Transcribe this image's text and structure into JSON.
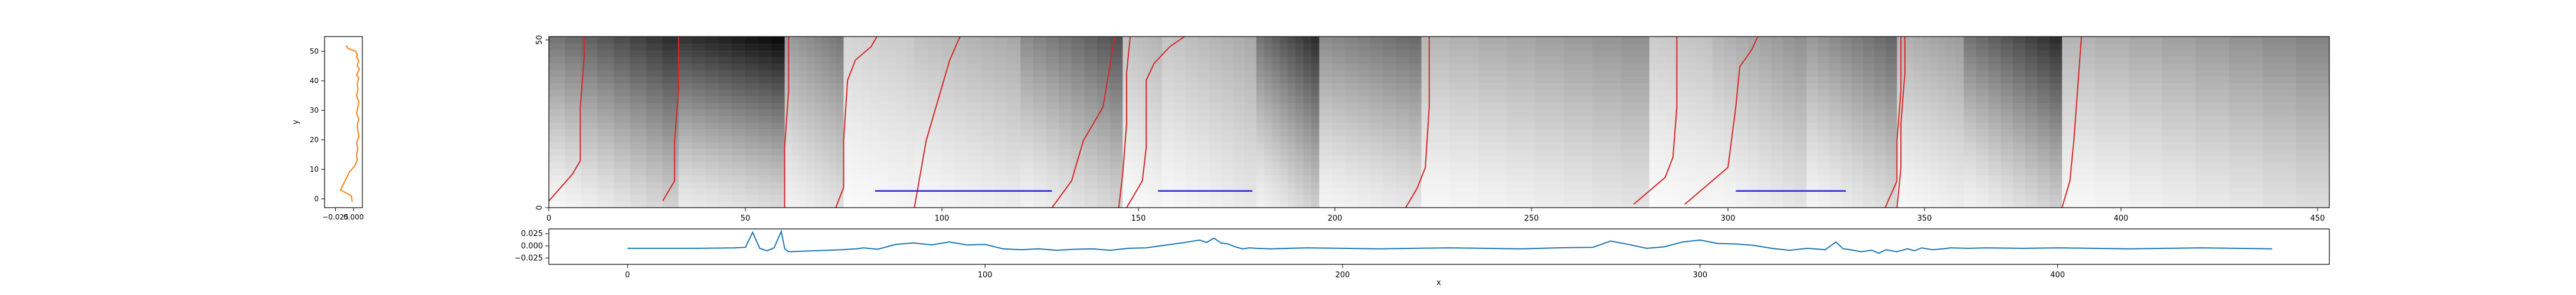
{
  "colors": {
    "path": "#d62728",
    "segment": "#1f1fd0",
    "bottom_series": "#1f77b4",
    "left_series": "#ff7f0e",
    "axes": "#000000"
  },
  "chart_data": [
    {
      "id": "left",
      "type": "line",
      "xlabel": "",
      "ylabel": "y",
      "xlim": [
        -0.04,
        0.012
      ],
      "ylim": [
        -3,
        55
      ],
      "xticks": [
        -0.025,
        0.0
      ],
      "xtick_labels": [
        "−0.025",
        "0.000"
      ],
      "yticks": [
        0,
        10,
        20,
        30,
        40,
        50
      ],
      "ytick_labels": [
        "0",
        "10",
        "20",
        "30",
        "40",
        "50"
      ],
      "series": [
        {
          "x": [
            -0.002,
            -0.003,
            -0.018,
            -0.012,
            -0.006,
            0.001,
            0.005,
            0.004,
            0.006,
            0.004,
            0.007,
            0.006,
            0.005,
            0.007,
            0.004,
            0.006,
            0.007,
            0.004,
            0.006,
            0.005,
            0.007,
            0.004,
            0.006,
            0.008,
            0.005,
            0.006,
            0.007,
            0.004,
            0.005,
            0.003,
            -0.008,
            -0.01
          ],
          "y": [
            -1,
            1,
            3,
            6,
            9,
            11,
            13,
            15,
            17,
            19,
            21,
            23,
            25,
            27,
            29,
            31,
            33,
            35,
            37,
            39,
            41,
            42,
            43,
            44,
            45,
            46,
            47,
            48,
            49,
            50,
            51,
            52
          ]
        }
      ]
    },
    {
      "id": "main",
      "type": "heatmap",
      "xlabel": "",
      "ylabel": "",
      "xlim": [
        0,
        453
      ],
      "ylim": [
        0,
        51
      ],
      "xticks": [
        0,
        50,
        100,
        150,
        200,
        250,
        300,
        350,
        400,
        450
      ],
      "xtick_labels": [
        "0",
        "50",
        "100",
        "150",
        "200",
        "250",
        "300",
        "350",
        "400",
        "450"
      ],
      "yticks": [
        0,
        50
      ],
      "ytick_labels": [
        "0",
        "50"
      ],
      "blocks": [
        {
          "x0": 0,
          "x1": 33,
          "hi": 0.85,
          "lo": 0.03,
          "ang": 0.6
        },
        {
          "x0": 33,
          "x1": 60,
          "hi": 0.98,
          "lo": 0.08,
          "ang": 0.3
        },
        {
          "x0": 60,
          "x1": 75,
          "hi": 0.55,
          "lo": 0.05,
          "ang": 0.5
        },
        {
          "x0": 75,
          "x1": 93,
          "hi": 0.22,
          "lo": 0.02,
          "ang": 0.4
        },
        {
          "x0": 93,
          "x1": 120,
          "hi": 0.35,
          "lo": 0.03,
          "ang": 0.5
        },
        {
          "x0": 120,
          "x1": 146,
          "hi": 0.7,
          "lo": 0.05,
          "ang": 0.6
        },
        {
          "x0": 146,
          "x1": 156,
          "hi": 0.3,
          "lo": 0.02,
          "ang": 0.3
        },
        {
          "x0": 156,
          "x1": 180,
          "hi": 0.35,
          "lo": 0.03,
          "ang": 0.6
        },
        {
          "x0": 180,
          "x1": 196,
          "hi": 0.85,
          "lo": 0.05,
          "ang": 0.6
        },
        {
          "x0": 196,
          "x1": 222,
          "hi": 0.6,
          "lo": 0.04,
          "ang": 0.4
        },
        {
          "x0": 222,
          "x1": 280,
          "hi": 0.45,
          "lo": 0.03,
          "ang": 0.6
        },
        {
          "x0": 280,
          "x1": 296,
          "hi": 0.25,
          "lo": 0.02,
          "ang": 0.3
        },
        {
          "x0": 296,
          "x1": 320,
          "hi": 0.45,
          "lo": 0.03,
          "ang": 0.6
        },
        {
          "x0": 320,
          "x1": 343,
          "hi": 0.62,
          "lo": 0.04,
          "ang": 0.6
        },
        {
          "x0": 343,
          "x1": 360,
          "hi": 0.4,
          "lo": 0.03,
          "ang": 0.4
        },
        {
          "x0": 360,
          "x1": 385,
          "hi": 0.85,
          "lo": 0.05,
          "ang": 0.6
        },
        {
          "x0": 385,
          "x1": 453,
          "hi": 0.5,
          "lo": 0.03,
          "ang": 0.7
        }
      ],
      "paths": [
        {
          "x": [
            0,
            6,
            8,
            8,
            9,
            9
          ],
          "y": [
            2,
            10,
            14,
            30,
            45,
            52
          ]
        },
        {
          "x": [
            29,
            32,
            32,
            33,
            33
          ],
          "y": [
            2,
            8,
            20,
            35,
            52
          ]
        },
        {
          "x": [
            60,
            60,
            61,
            61
          ],
          "y": [
            0,
            18,
            35,
            52
          ]
        },
        {
          "x": [
            73,
            75,
            75,
            76,
            78,
            82,
            84
          ],
          "y": [
            0,
            6,
            20,
            38,
            44,
            48,
            52
          ]
        },
        {
          "x": [
            93,
            96,
            98,
            100,
            102,
            105
          ],
          "y": [
            0,
            20,
            28,
            36,
            44,
            52
          ]
        },
        {
          "x": [
            128,
            133,
            134,
            136,
            141,
            144
          ],
          "y": [
            0,
            8,
            12,
            20,
            30,
            51
          ]
        },
        {
          "x": [
            145,
            146,
            147,
            147,
            148
          ],
          "y": [
            0,
            10,
            25,
            40,
            52
          ]
        },
        {
          "x": [
            147,
            151,
            152,
            152,
            154,
            158,
            163
          ],
          "y": [
            0,
            8,
            18,
            38,
            43,
            48,
            52
          ]
        },
        {
          "x": [
            218,
            221,
            223,
            224,
            224
          ],
          "y": [
            0,
            6,
            12,
            30,
            52
          ]
        },
        {
          "x": [
            276,
            284,
            286,
            287,
            287
          ],
          "y": [
            1,
            9,
            15,
            30,
            52
          ]
        },
        {
          "x": [
            289,
            296,
            300,
            302,
            303,
            306,
            308
          ],
          "y": [
            1,
            8,
            12,
            30,
            42,
            47,
            52
          ]
        },
        {
          "x": [
            340,
            343,
            343,
            344,
            344
          ],
          "y": [
            0,
            8,
            20,
            35,
            52
          ]
        },
        {
          "x": [
            343,
            344,
            344,
            345,
            345
          ],
          "y": [
            0,
            12,
            25,
            40,
            52
          ]
        },
        {
          "x": [
            385,
            387,
            388,
            389,
            390
          ],
          "y": [
            0,
            8,
            20,
            36,
            52
          ]
        }
      ],
      "segments": [
        {
          "x0": 83,
          "x1": 128,
          "y": 5
        },
        {
          "x0": 155,
          "x1": 179,
          "y": 5
        },
        {
          "x0": 302,
          "x1": 330,
          "y": 5
        }
      ]
    },
    {
      "id": "bottom",
      "type": "line",
      "xlabel": "x",
      "ylabel": "",
      "xlim": [
        -22,
        476
      ],
      "ylim": [
        -0.038,
        0.035
      ],
      "xticks": [
        0,
        100,
        200,
        300,
        400
      ],
      "xtick_labels": [
        "0",
        "100",
        "200",
        "300",
        "400"
      ],
      "yticks": [
        0.025,
        0.0,
        -0.025
      ],
      "ytick_labels": [
        "0.025",
        "0.000",
        "−0.025"
      ],
      "series": [
        {
          "x": [
            0,
            20,
            30,
            33,
            35,
            37,
            39,
            41,
            43,
            44,
            45,
            60,
            64,
            66,
            70,
            75,
            80,
            85,
            90,
            95,
            100,
            105,
            110,
            115,
            120,
            125,
            130,
            135,
            140,
            145,
            150,
            155,
            160,
            162,
            164,
            166,
            168,
            170,
            172,
            174,
            176,
            180,
            190,
            200,
            210,
            220,
            230,
            240,
            250,
            260,
            270,
            275,
            280,
            285,
            290,
            295,
            300,
            305,
            310,
            315,
            320,
            325,
            330,
            335,
            338,
            340,
            342,
            345,
            348,
            350,
            352,
            355,
            358,
            360,
            362,
            365,
            368,
            370,
            375,
            380,
            390,
            400,
            410,
            420,
            430,
            440,
            450,
            460
          ],
          "y": [
            -0.005,
            -0.005,
            -0.004,
            -0.003,
            0.028,
            -0.005,
            -0.01,
            -0.004,
            0.03,
            -0.006,
            -0.012,
            -0.008,
            -0.006,
            -0.004,
            -0.007,
            0.003,
            0.006,
            0.002,
            0.008,
            0.002,
            0.003,
            -0.006,
            -0.008,
            -0.006,
            -0.009,
            -0.007,
            -0.006,
            -0.009,
            -0.005,
            -0.004,
            0.001,
            0.006,
            0.012,
            0.007,
            0.016,
            0.006,
            0.004,
            -0.002,
            -0.006,
            -0.004,
            -0.005,
            -0.006,
            -0.004,
            -0.005,
            -0.006,
            -0.005,
            -0.004,
            -0.005,
            -0.006,
            -0.004,
            -0.003,
            0.01,
            0.003,
            -0.005,
            -0.002,
            0.008,
            0.012,
            0.005,
            0.004,
            0.001,
            -0.005,
            -0.009,
            -0.005,
            -0.008,
            0.008,
            -0.006,
            -0.008,
            -0.012,
            -0.009,
            -0.015,
            -0.008,
            -0.012,
            -0.006,
            -0.01,
            -0.004,
            -0.008,
            -0.006,
            -0.004,
            -0.005,
            -0.004,
            -0.005,
            -0.004,
            -0.005,
            -0.006,
            -0.005,
            -0.004,
            -0.005,
            -0.006
          ]
        }
      ]
    }
  ]
}
